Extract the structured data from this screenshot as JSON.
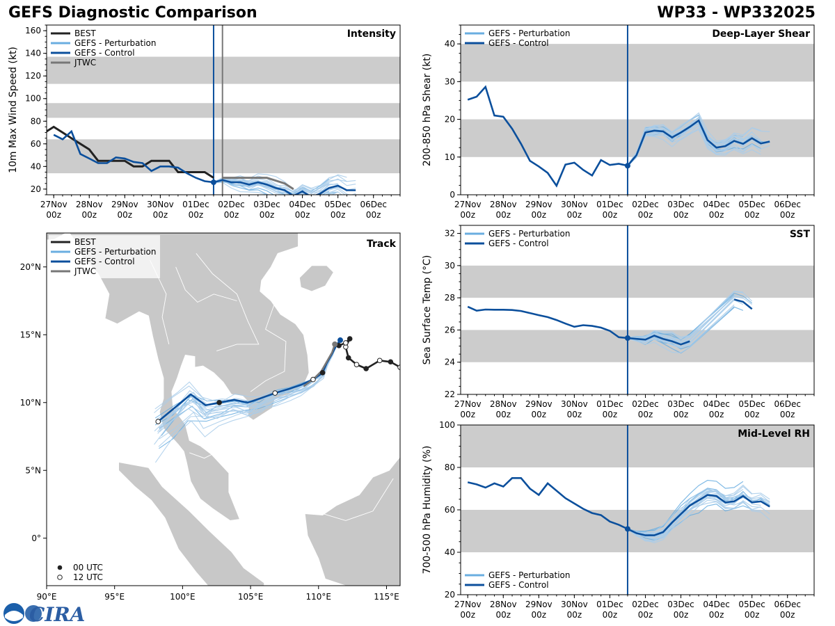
{
  "header": {
    "title": "GEFS Diagnostic Comparison",
    "storm": "WP33 - WP332025"
  },
  "colors": {
    "best": "#222222",
    "perturbation": "#6aaee0",
    "perturbation_thin": "#a9cdea",
    "control": "#0b4f9c",
    "jtwc": "#777777",
    "band": "#cccccc",
    "land": "#c8c8c8",
    "marker_now": "#0b4f9c"
  },
  "legend_labels": {
    "best": "BEST",
    "perturbation": "GEFS - Perturbation",
    "control": "GEFS - Control",
    "jtwc": "JTWC",
    "utc00": "00 UTC",
    "utc12": "12 UTC"
  },
  "time_ticks": [
    {
      "day": "27Nov",
      "hour": "00z"
    },
    {
      "day": "28Nov",
      "hour": "00z"
    },
    {
      "day": "29Nov",
      "hour": "00z"
    },
    {
      "day": "30Nov",
      "hour": "00z"
    },
    {
      "day": "01Dec",
      "hour": "00z"
    },
    {
      "day": "02Dec",
      "hour": "00z"
    },
    {
      "day": "03Dec",
      "hour": "00z"
    },
    {
      "day": "04Dec",
      "hour": "00z"
    },
    {
      "day": "05Dec",
      "hour": "00z"
    },
    {
      "day": "06Dec",
      "hour": "00z"
    }
  ],
  "logo_text": "CIRA",
  "chart_data": [
    {
      "id": "intensity",
      "type": "line",
      "title": "Intensity",
      "ylabel": "10m Max Wind Speed (kt)",
      "xlim": [
        -0.2,
        9.75
      ],
      "ylim": [
        15,
        165
      ],
      "yticks": [
        20,
        40,
        60,
        80,
        100,
        120,
        140,
        160
      ],
      "bands": [
        [
          34,
          64
        ],
        [
          83,
          96
        ],
        [
          113,
          137
        ]
      ],
      "init_time": 4.5,
      "jtwc_time": 4.75,
      "series": [
        {
          "name": "BEST",
          "x": [
            -0.25,
            0,
            0.25,
            0.5,
            0.75,
            1,
            1.25,
            1.5,
            1.75,
            2,
            2.25,
            2.5,
            2.75,
            3,
            3.25,
            3.5,
            3.75,
            4,
            4.25,
            4.5
          ],
          "values": [
            70,
            75,
            70,
            65,
            60,
            55,
            45,
            45,
            45,
            45,
            40,
            40,
            45,
            45,
            45,
            35,
            35,
            35,
            35,
            30
          ]
        },
        {
          "name": "GEFS - Control",
          "x": [
            0,
            0.25,
            0.5,
            0.75,
            1,
            1.25,
            1.5,
            1.75,
            2,
            2.25,
            2.5,
            2.75,
            3,
            3.25,
            3.5,
            3.75,
            4,
            4.25,
            4.5,
            4.75,
            5,
            5.25,
            5.5,
            5.75,
            6,
            6.25,
            6.5,
            6.75,
            7,
            7.25,
            7.5,
            7.75,
            8,
            8.25,
            8.5
          ],
          "values": [
            68,
            64,
            71,
            51,
            47,
            43,
            43,
            48,
            47,
            44,
            43,
            36,
            40,
            40,
            39,
            34,
            30,
            27,
            26,
            28,
            26,
            26,
            24,
            26,
            24,
            21,
            19,
            14,
            18,
            13,
            16,
            21,
            23,
            19,
            19
          ]
        },
        {
          "name": "JTWC",
          "x": [
            4.75,
            5,
            5.5,
            6,
            6.5,
            6.75
          ],
          "values": [
            30,
            30,
            30,
            30,
            25,
            20
          ]
        },
        {
          "name": "GEFS - Perturbation",
          "spread": 1
        }
      ]
    },
    {
      "id": "shear",
      "type": "line",
      "title": "Deep-Layer Shear",
      "ylabel": "200-850 hPa Shear (kt)",
      "xlim": [
        -0.2,
        9.75
      ],
      "ylim": [
        0,
        45
      ],
      "yticks": [
        0,
        10,
        20,
        30,
        40
      ],
      "bands": [
        [
          10,
          20
        ],
        [
          30,
          40
        ]
      ],
      "init_time": 4.5,
      "series": [
        {
          "name": "GEFS - Control",
          "x": [
            0,
            0.25,
            0.5,
            0.75,
            1,
            1.25,
            1.5,
            1.75,
            2,
            2.25,
            2.5,
            2.75,
            3,
            3.25,
            3.5,
            3.75,
            4,
            4.25,
            4.5,
            4.75,
            5,
            5.25,
            5.5,
            5.75,
            6,
            6.25,
            6.5,
            6.75,
            7,
            7.25,
            7.5,
            7.75,
            8,
            8.25,
            8.5
          ],
          "values": [
            25.2,
            26,
            28.6,
            21,
            20.7,
            17.5,
            13.5,
            9,
            7.5,
            5.8,
            2.4,
            8,
            8.5,
            6.6,
            5.1,
            9.2,
            7.9,
            8.2,
            7.7,
            10.5,
            16.5,
            17,
            16.8,
            15.2,
            16.5,
            18,
            19.7,
            14.5,
            12.5,
            12.9,
            14.3,
            13.5,
            15,
            13.6,
            14.1
          ]
        },
        {
          "name": "GEFS - Perturbation",
          "spread": 1
        }
      ]
    },
    {
      "id": "sst",
      "type": "line",
      "title": "SST",
      "ylabel": "Sea Surface Temp (°C)",
      "xlim": [
        -0.2,
        9.75
      ],
      "ylim": [
        22,
        32.5
      ],
      "yticks": [
        22,
        24,
        26,
        28,
        30,
        32
      ],
      "bands": [
        [
          24,
          26
        ],
        [
          28,
          30
        ]
      ],
      "init_time": 4.5,
      "series": [
        {
          "name": "GEFS - Control",
          "x": [
            0,
            0.25,
            0.5,
            0.75,
            1,
            1.25,
            1.5,
            1.75,
            2,
            2.25,
            2.5,
            2.75,
            3,
            3.25,
            3.5,
            3.75,
            4,
            4.25,
            4.5,
            4.75,
            5,
            5.25,
            5.5,
            5.75,
            6,
            6.25,
            7.5,
            7.75,
            8
          ],
          "values": [
            27.45,
            27.2,
            27.27,
            27.26,
            27.26,
            27.24,
            27.18,
            27.05,
            26.92,
            26.8,
            26.62,
            26.4,
            26.2,
            26.3,
            26.25,
            26.15,
            25.95,
            25.55,
            25.5,
            25.45,
            25.4,
            25.65,
            25.45,
            25.3,
            25.1,
            25.3,
            27.9,
            27.75,
            27.3
          ]
        },
        {
          "name": "GEFS - Perturbation",
          "spread": 1
        }
      ]
    },
    {
      "id": "rh",
      "type": "line",
      "title": "Mid-Level RH",
      "ylabel": "700-500 hPa Humidity (%)",
      "xlim": [
        -0.2,
        9.75
      ],
      "ylim": [
        20,
        100
      ],
      "yticks": [
        20,
        40,
        60,
        80,
        100
      ],
      "bands": [
        [
          40,
          60
        ],
        [
          80,
          100
        ]
      ],
      "init_time": 4.5,
      "series": [
        {
          "name": "GEFS - Control",
          "x": [
            0,
            0.25,
            0.5,
            0.75,
            1,
            1.25,
            1.5,
            1.75,
            2,
            2.25,
            2.5,
            2.75,
            3,
            3.25,
            3.5,
            3.75,
            4,
            4.25,
            4.5,
            4.75,
            5,
            5.25,
            5.5,
            5.75,
            6,
            6.25,
            6.5,
            6.75,
            7,
            7.25,
            7.5,
            7.75,
            8,
            8.25,
            8.5
          ],
          "values": [
            73,
            72,
            70.5,
            72.5,
            71,
            75,
            75,
            70,
            67,
            72.5,
            69,
            65.5,
            63,
            60.5,
            58.5,
            57.5,
            54.5,
            53,
            51,
            49,
            48,
            48,
            49.5,
            54,
            58,
            62,
            64.5,
            67,
            66.5,
            63.5,
            64,
            66.5,
            63.5,
            64,
            61.5
          ]
        },
        {
          "name": "GEFS - Perturbation",
          "spread": 1
        }
      ]
    },
    {
      "id": "track",
      "type": "scatter",
      "title": "Track",
      "xlim": [
        90,
        116
      ],
      "ylim": [
        -3.5,
        22.5
      ],
      "xticks": [
        "90°E",
        "95°E",
        "100°E",
        "105°E",
        "110°E",
        "115°E"
      ],
      "yticks": [
        "0°",
        "5°N",
        "10°N",
        "15°N",
        "20°N"
      ],
      "series": [
        {
          "name": "BEST",
          "lon": [
            116,
            115.3,
            114.5,
            113.5,
            112.8,
            112.2,
            112.0,
            112.3,
            112.0,
            111.5
          ],
          "lat": [
            12.6,
            13.0,
            13.1,
            12.5,
            12.8,
            13.3,
            14.1,
            14.7,
            14.4,
            14.2
          ]
        },
        {
          "name": "GEFS - Control",
          "lon": [
            98.2,
            99.4,
            100.6,
            101.7,
            102.7,
            103.8,
            104.8,
            105.7,
            106.8,
            107.8,
            108.7,
            109.6,
            110.3,
            110.6,
            111.0,
            111.3,
            111.6
          ],
          "lat": [
            8.6,
            9.6,
            10.6,
            9.8,
            10.0,
            10.2,
            10.0,
            10.3,
            10.7,
            11.0,
            11.3,
            11.7,
            12.2,
            12.9,
            13.6,
            14.2,
            14.6
          ]
        },
        {
          "name": "JTWC",
          "lon": [
            111.2,
            111.0,
            110.6,
            110.2,
            109.6,
            108.9
          ],
          "lat": [
            14.3,
            13.7,
            13.0,
            12.3,
            11.7,
            11.2
          ]
        },
        {
          "name": "GEFS - Perturbation",
          "spread": 1
        }
      ]
    }
  ]
}
